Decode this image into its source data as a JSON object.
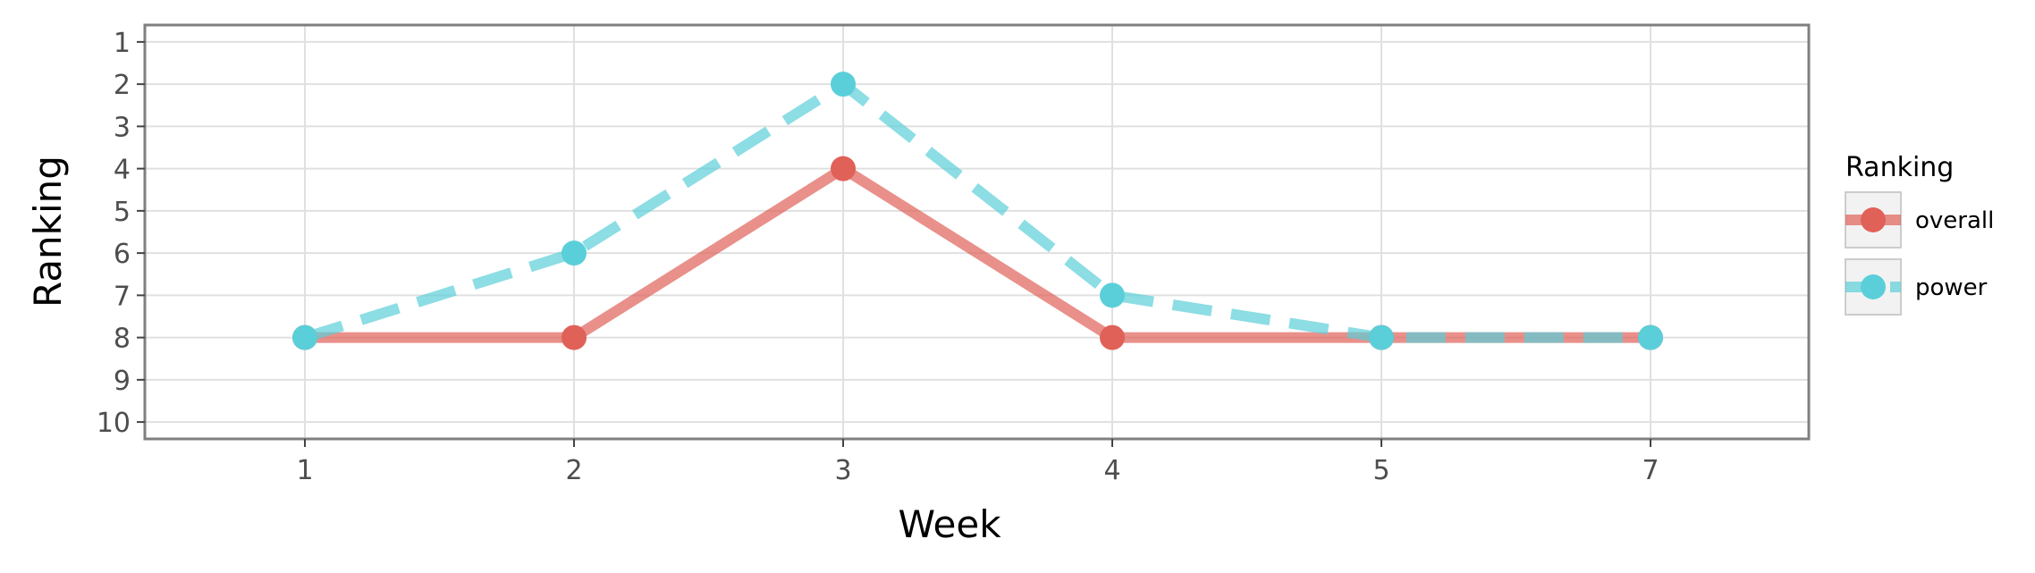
{
  "chart_data": {
    "type": "line",
    "xlabel": "Week",
    "ylabel": "Ranking",
    "categories": [
      "1",
      "2",
      "3",
      "4",
      "5",
      "7"
    ],
    "y_ticks": [
      "1",
      "2",
      "3",
      "4",
      "5",
      "6",
      "7",
      "8",
      "9",
      "10"
    ],
    "ylim": [
      10.4,
      0.6
    ],
    "y_reversed": true,
    "grid": true,
    "legend": {
      "title": "Ranking",
      "position": "right"
    },
    "series": [
      {
        "name": "overall",
        "values": [
          8,
          8,
          4,
          8,
          8,
          8
        ],
        "color": "#e06158",
        "line_style": "solid"
      },
      {
        "name": "power",
        "values": [
          8,
          6,
          2,
          7,
          8,
          8
        ],
        "color": "#5bcfd9",
        "line_style": "dashed"
      }
    ]
  }
}
